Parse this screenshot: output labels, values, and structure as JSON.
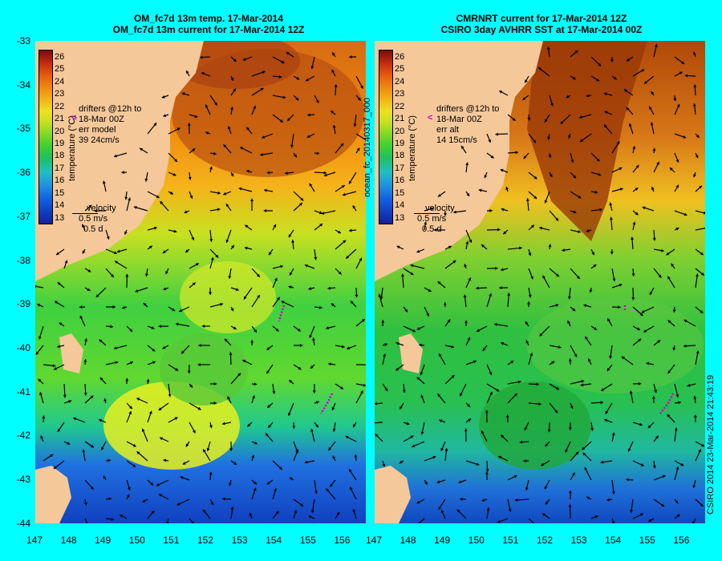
{
  "panels": [
    {
      "id": "left",
      "title_line1": "OM_fc7d 13m temp. 17-Mar-2014",
      "title_line2": "OM_fc7d 13m current for 17-Mar-2014 12Z",
      "legend_drifters": "drifters @12h to",
      "legend_date": "18-Mar 00Z",
      "legend_err": "err model",
      "legend_stats": "39 24cm/s",
      "legend_velocity": "velocity",
      "legend_speed": "0.5 m/s",
      "legend_time": "0.5 d",
      "colorbar_title": "temperature (°C)"
    },
    {
      "id": "right",
      "title_line1": "CMRNRT current for 17-Mar-2014 12Z",
      "title_line2": "CSIRO 3day AVHRR SST at 17-Mar-2014 00Z",
      "legend_drifters": "drifters @12h to",
      "legend_date": "18-Mar 00Z",
      "legend_err": "err alt",
      "legend_stats": "14 15cm/s",
      "legend_velocity": "velocity",
      "legend_speed": "0.5 m/s",
      "legend_time": "0.5 d",
      "colorbar_title": "temperature (°C)"
    }
  ],
  "map": {
    "lon_ticks": [
      "147",
      "148",
      "149",
      "150",
      "151",
      "152",
      "153",
      "154",
      "155",
      "156"
    ],
    "lat_ticks": [
      "-33",
      "-34",
      "-35",
      "-36",
      "-37",
      "-38",
      "-39",
      "-40",
      "-41",
      "-42",
      "-43",
      "-44"
    ],
    "lon_range": [
      147,
      156.5
    ],
    "lat_range": [
      -44,
      -33
    ],
    "colorbar_values": [
      "26",
      "25",
      "24",
      "23",
      "22",
      "21",
      "20",
      "19",
      "18",
      "17",
      "16",
      "15",
      "14",
      "13"
    ],
    "colorbar_range": [
      13,
      26
    ]
  },
  "side_label": "ocean_fc_20140317_000",
  "credit": "CSIRO 2014  23-Mar-2014 21:43:19",
  "drifter_symbol": "<",
  "colors": {
    "background": "#00ffff",
    "land": "#f5c89a",
    "drifter": "#cc00cc",
    "arrow": "#000000"
  }
}
